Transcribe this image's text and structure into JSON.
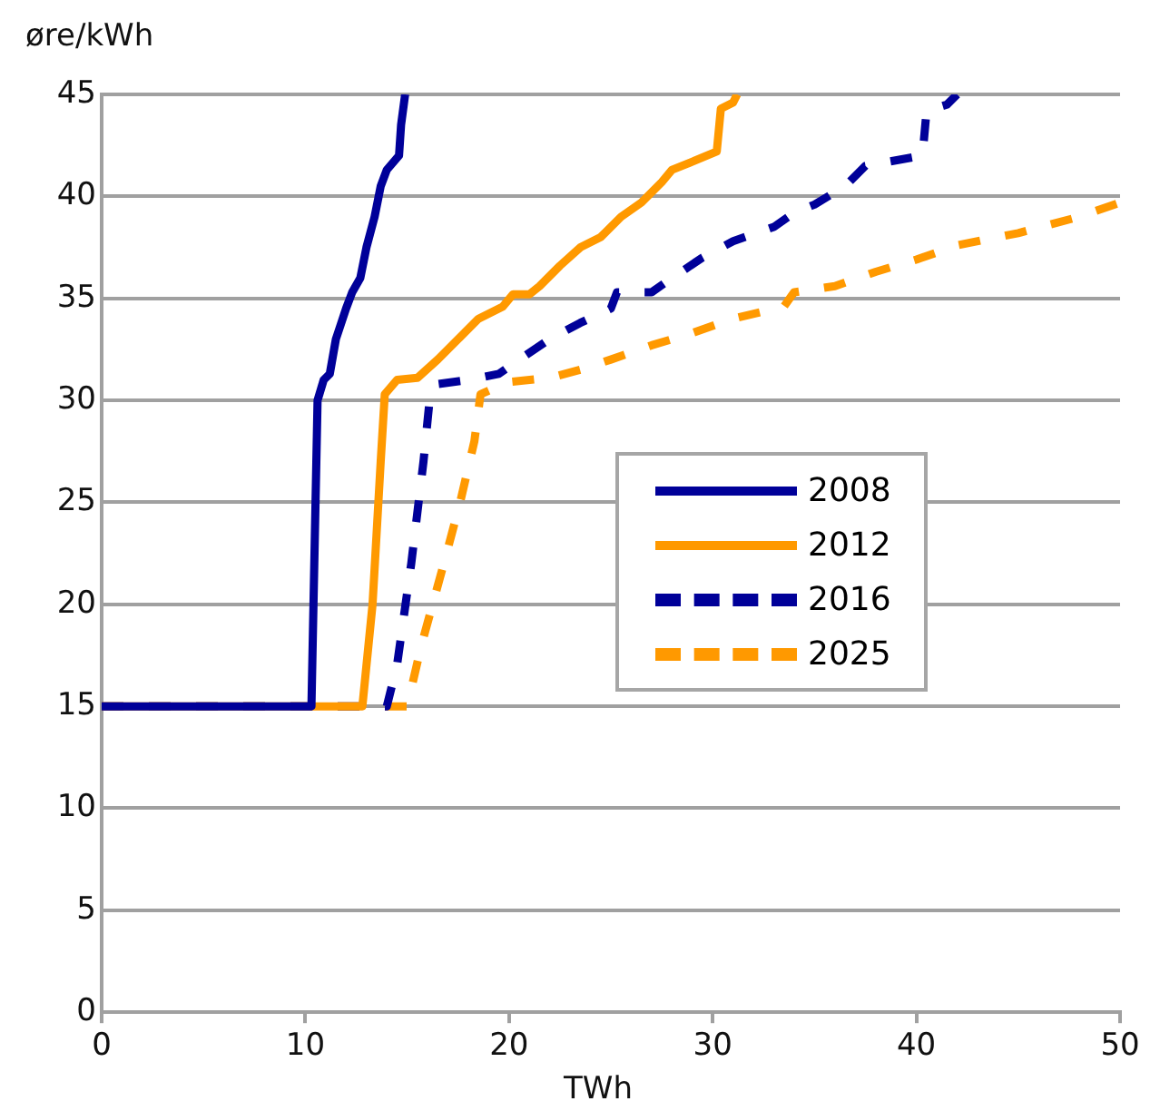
{
  "chart_data": {
    "type": "line",
    "xlabel": "TWh",
    "ylabel": "øre/kWh",
    "xlim": [
      0,
      50
    ],
    "xticks": [
      0,
      10,
      20,
      30,
      40,
      50
    ],
    "ylim": [
      0,
      45
    ],
    "yticks": [
      0,
      5,
      10,
      15,
      20,
      25,
      30,
      35,
      40,
      45
    ],
    "grid": "y",
    "legend": "right",
    "marker": "none",
    "series": [
      {
        "name": "2008",
        "color": "#000099",
        "line_style": "solid",
        "x": [
          0,
          10.3,
          10.4,
          10.6,
          10.9,
          11.2,
          11.5,
          12,
          12.3,
          12.7,
          13,
          13.4,
          13.7,
          14,
          14.6,
          14.7,
          14.9
        ],
        "values": [
          15,
          15,
          20,
          30,
          31,
          31.3,
          33,
          34.5,
          35.3,
          36,
          37.5,
          39,
          40.5,
          41.3,
          42,
          43.5,
          45
        ]
      },
      {
        "name": "2012",
        "color": "#ff9900",
        "line_style": "solid",
        "x": [
          0,
          12.8,
          13.3,
          13.7,
          13.9,
          14.5,
          15.5,
          16.5,
          17.5,
          18.5,
          19.7,
          20.2,
          21,
          21.5,
          22.5,
          23.5,
          24.5,
          25.5,
          26.5,
          27.5,
          28,
          29,
          30.2,
          30.4,
          31,
          31.2
        ],
        "values": [
          15,
          15,
          20,
          27,
          30.3,
          31,
          31.1,
          32,
          33,
          34,
          34.6,
          35.2,
          35.2,
          35.6,
          36.6,
          37.5,
          38,
          39,
          39.7,
          40.7,
          41.3,
          41.7,
          42.2,
          44.3,
          44.6,
          45
        ]
      },
      {
        "name": "2016",
        "color": "#000099",
        "line_style": "dashed",
        "x": [
          0,
          14,
          14.5,
          15.2,
          15.8,
          16.1,
          16.5,
          18,
          19.5,
          20.5,
          22,
          23.5,
          25,
          25.3,
          27,
          28,
          29.5,
          31,
          33,
          34,
          35,
          36.5,
          37.5,
          40.3,
          40.5,
          41.5,
          42
        ],
        "values": [
          15,
          15,
          17,
          22,
          27,
          30,
          30.8,
          31,
          31.3,
          32,
          33,
          33.8,
          34.5,
          35.3,
          35.3,
          36,
          37,
          37.8,
          38.5,
          39.2,
          39.6,
          40.5,
          41.5,
          42,
          44.2,
          44.5,
          45
        ]
      },
      {
        "name": "2025",
        "color": "#ff9900",
        "line_style": "dashed",
        "x": [
          0,
          15,
          15.7,
          16.8,
          17.6,
          18.3,
          18.6,
          20,
          22,
          23.5,
          25,
          27,
          29,
          31,
          33.5,
          34,
          36,
          38,
          40,
          42,
          45,
          48,
          50
        ],
        "values": [
          15,
          15,
          18,
          22,
          25,
          28,
          30.3,
          30.9,
          31.1,
          31.5,
          32,
          32.7,
          33.3,
          34,
          34.6,
          35.3,
          35.6,
          36.3,
          36.9,
          37.6,
          38.2,
          39,
          39.7
        ]
      }
    ]
  }
}
